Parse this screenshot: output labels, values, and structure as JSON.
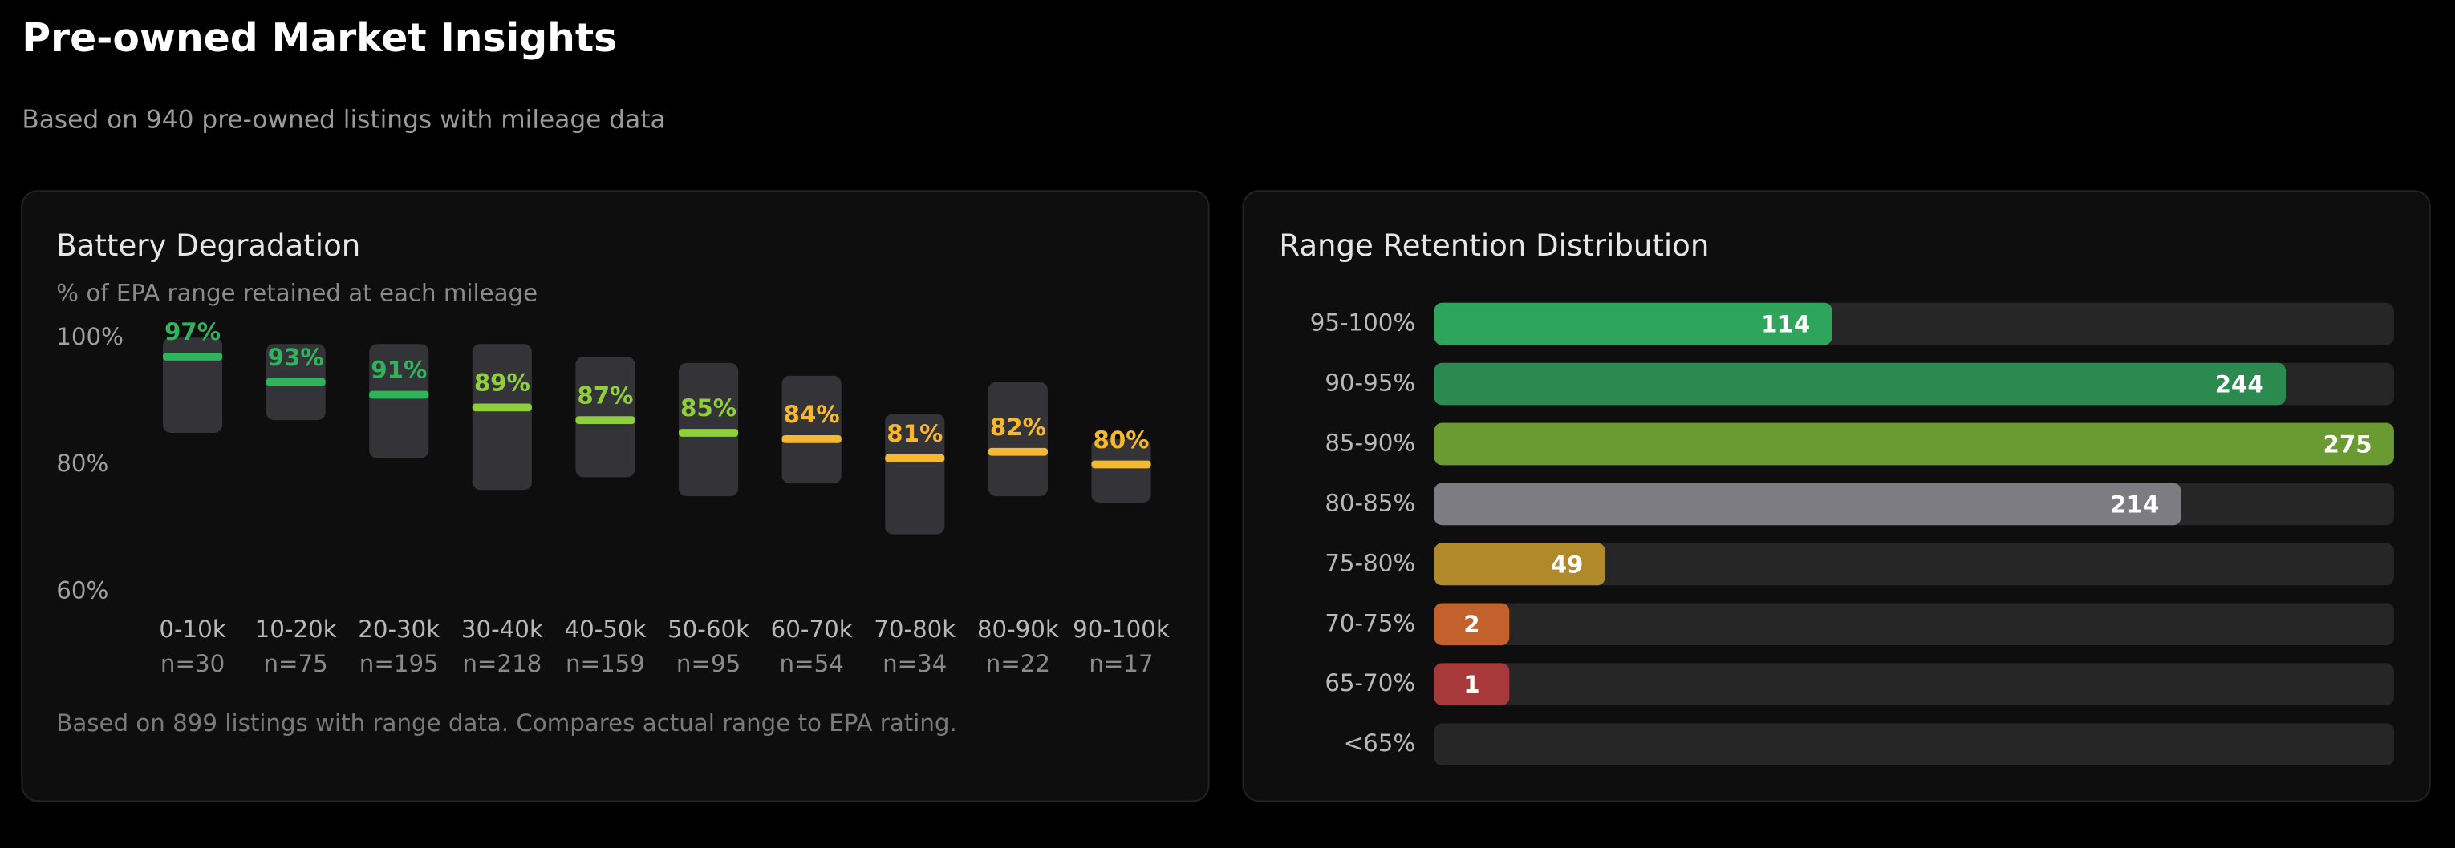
{
  "header": {
    "title": "Pre-owned Market Insights",
    "subtitle": "Based on 940 pre-owned listings with mileage data"
  },
  "chart_data": [
    {
      "type": "range-dash",
      "title": "Battery Degradation",
      "subtitle": "% of EPA range retained at each mileage",
      "footnote": "Based on 899 listings with range data. Compares actual range to EPA rating.",
      "categories": [
        "0-10k",
        "10-20k",
        "20-30k",
        "30-40k",
        "40-50k",
        "50-60k",
        "60-70k",
        "70-80k",
        "80-90k",
        "90-100k"
      ],
      "count_labels": [
        "n=30",
        "n=75",
        "n=195",
        "n=218",
        "n=159",
        "n=95",
        "n=54",
        "n=34",
        "n=22",
        "n=17"
      ],
      "values": [
        97,
        93,
        91,
        89,
        87,
        85,
        84,
        81,
        82,
        80
      ],
      "value_labels": [
        "97%",
        "93%",
        "91%",
        "89%",
        "87%",
        "85%",
        "84%",
        "81%",
        "82%",
        "80%"
      ],
      "low": [
        85,
        87,
        81,
        76,
        78,
        75,
        77,
        69,
        75,
        74
      ],
      "high": [
        100,
        99,
        99,
        99,
        97,
        96,
        94,
        88,
        93,
        84
      ],
      "colors": [
        "#2fb45c",
        "#2fb45c",
        "#2fb45c",
        "#8fcf3c",
        "#8fcf3c",
        "#8fcf3c",
        "#f5b82e",
        "#f5b82e",
        "#f5b82e",
        "#f5b82e"
      ],
      "box_color": "#3a3a40",
      "ylim": [
        60,
        100
      ],
      "yticks": [
        {
          "value": 100,
          "label": "100%"
        },
        {
          "value": 80,
          "label": "80%"
        },
        {
          "value": 60,
          "label": "60%"
        }
      ],
      "grid": false
    },
    {
      "type": "hbar",
      "title": "Range Retention Distribution",
      "categories": [
        "95-100%",
        "90-95%",
        "85-90%",
        "80-85%",
        "75-80%",
        "70-75%",
        "65-70%",
        "<65%"
      ],
      "values": [
        114,
        244,
        275,
        214,
        49,
        2,
        1,
        null
      ],
      "colors": [
        "#2ea55a",
        "#2b8a4f",
        "#6a9a32",
        "#7c7c82",
        "#b0892a",
        "#c2612b",
        "#a8393b",
        "#555555"
      ],
      "xlim": [
        0,
        275
      ]
    }
  ]
}
